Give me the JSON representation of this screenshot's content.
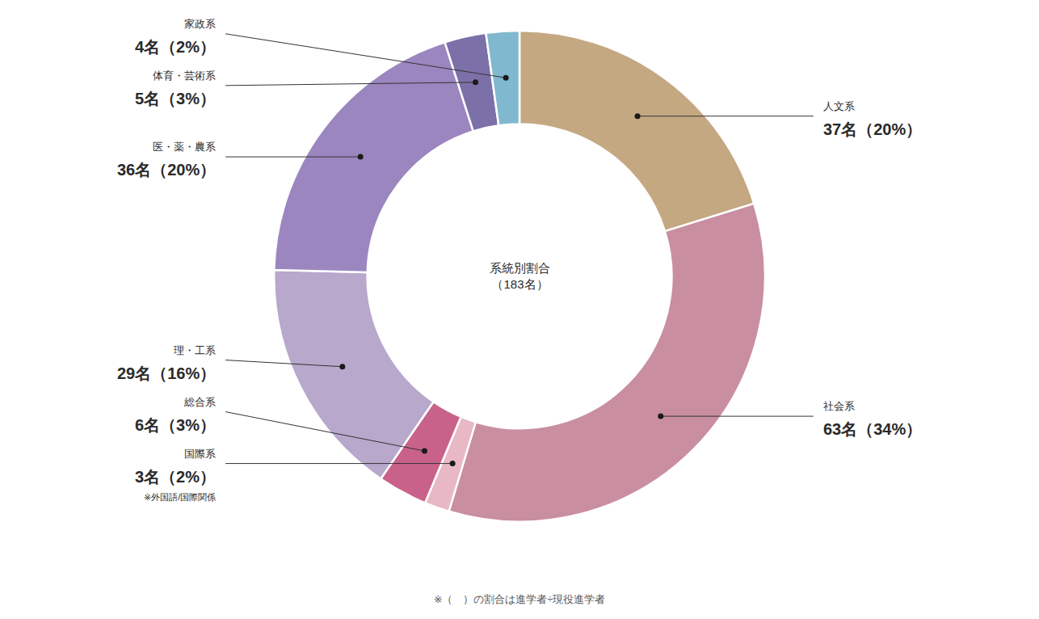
{
  "chart_data": {
    "type": "donut",
    "title": [
      "系統別割合",
      "（183名）"
    ],
    "subtitle": "※（　）の割合は進学者÷現役進学者",
    "categories": [
      "人文系",
      "社会系",
      "国際系",
      "総合系",
      "理・工系",
      "医・薬・農系",
      "体育・芸術系",
      "家政系"
    ],
    "values": [
      37,
      63,
      3,
      6,
      29,
      36,
      5,
      4
    ],
    "value_labels": [
      "37名（20%）",
      "63名（34%）",
      "3名（2%）",
      "6名（3%）",
      "29名（16%）",
      "36名（20%）",
      "5名（3%）",
      "4名（2%）"
    ],
    "colors": [
      "#c4a882",
      "#c98ea0",
      "#e8b8c5",
      "#c9628a",
      "#b8a8cc",
      "#9b86bf",
      "#7b70a8",
      "#80b8d0"
    ],
    "data_labels": true,
    "annotations": [
      {
        "category": "国際系",
        "text": "※外国語/国際関係"
      }
    ]
  }
}
